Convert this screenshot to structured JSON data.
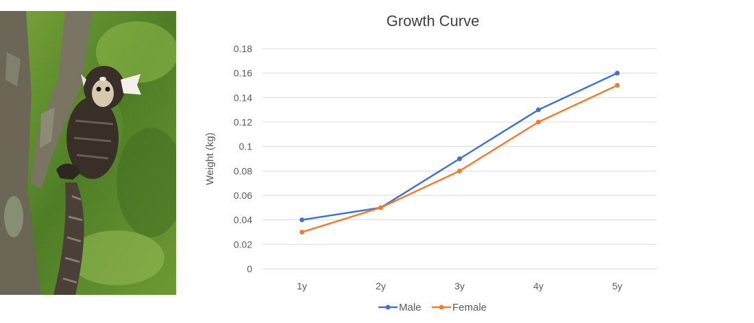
{
  "photo": {
    "subject": "marmoset",
    "colors": {
      "foliage": "#5f8a2e",
      "bark": "#6f6a58",
      "fur": "#3a2f28",
      "face": "#d8c8b0"
    }
  },
  "chart_data": {
    "type": "line",
    "title": "Growth Curve",
    "xlabel": "",
    "ylabel": "Weight (kg)",
    "categories": [
      "1y",
      "2y",
      "3y",
      "4y",
      "5y"
    ],
    "ylim": [
      0,
      0.18
    ],
    "yticks": [
      "0",
      "0.02",
      "0.04",
      "0.06",
      "0.08",
      "0.1",
      "0.12",
      "0.14",
      "0.16",
      "0.18"
    ],
    "grid": true,
    "legend_position": "bottom",
    "series": [
      {
        "name": "Male",
        "color": "#4472c4",
        "values": [
          0.04,
          0.05,
          0.09,
          0.13,
          0.16
        ]
      },
      {
        "name": "Female",
        "color": "#ed7d31",
        "values": [
          0.03,
          0.05,
          0.08,
          0.12,
          0.15
        ]
      }
    ]
  }
}
